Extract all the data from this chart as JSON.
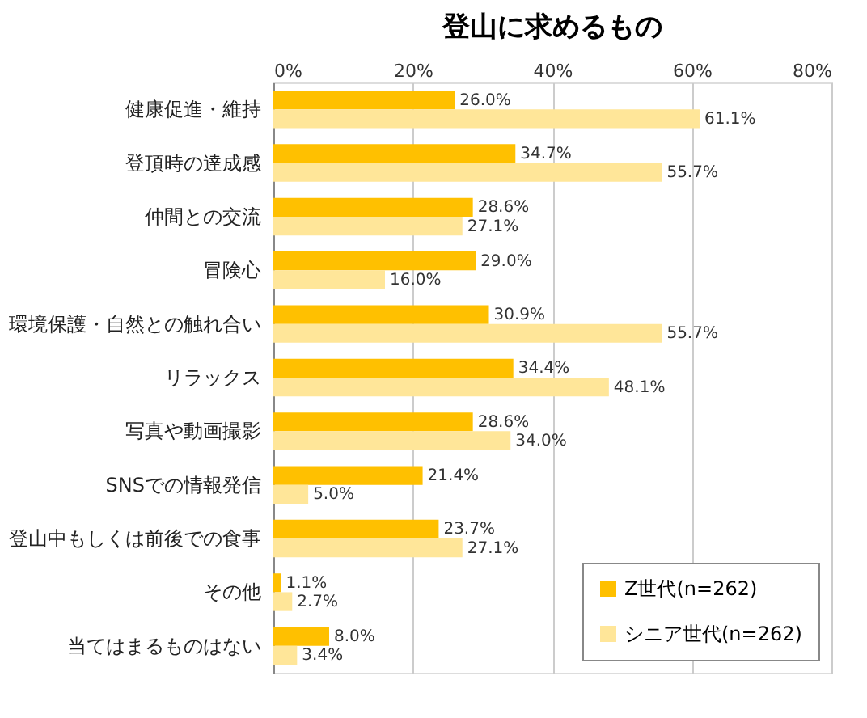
{
  "chart_data": {
    "type": "bar",
    "orientation": "horizontal",
    "title": "登山に求めるもの",
    "categories": [
      "健康促進・維持",
      "登頂時の達成感",
      "仲間との交流",
      "冒険心",
      "環境保護・自然との触れ合い",
      "リラックス",
      "写真や動画撮影",
      "SNSでの情報発信",
      "登山中もしくは前後での食事",
      "その他",
      "当てはまるものはない"
    ],
    "series": [
      {
        "name": "Z世代(n=262)",
        "color": "#ffc000",
        "values": [
          26.0,
          34.7,
          28.6,
          29.0,
          30.9,
          34.4,
          28.6,
          21.4,
          23.7,
          1.1,
          8.0
        ],
        "value_labels": [
          "26.0%",
          "34.7%",
          "28.6%",
          "29.0%",
          "30.9%",
          "34.4%",
          "28.6%",
          "21.4%",
          "23.7%",
          "1.1%",
          "8.0%"
        ]
      },
      {
        "name": "シニア世代(n=262)",
        "color": "#ffe699",
        "values": [
          61.1,
          55.7,
          27.1,
          16.0,
          55.7,
          48.1,
          34.0,
          5.0,
          27.1,
          2.7,
          3.4
        ],
        "value_labels": [
          "61.1%",
          "55.7%",
          "27.1%",
          "16.0%",
          "55.7%",
          "48.1%",
          "34.0%",
          "5.0%",
          "27.1%",
          "2.7%",
          "3.4%"
        ]
      }
    ],
    "xlim": [
      0,
      80
    ],
    "xticks": [
      {
        "value": 0,
        "label": "0%"
      },
      {
        "value": 20,
        "label": "20%"
      },
      {
        "value": 40,
        "label": "40%"
      },
      {
        "value": 60,
        "label": "60%"
      },
      {
        "value": 80,
        "label": "80%"
      }
    ],
    "grid": "x",
    "legend": "bottom right"
  }
}
